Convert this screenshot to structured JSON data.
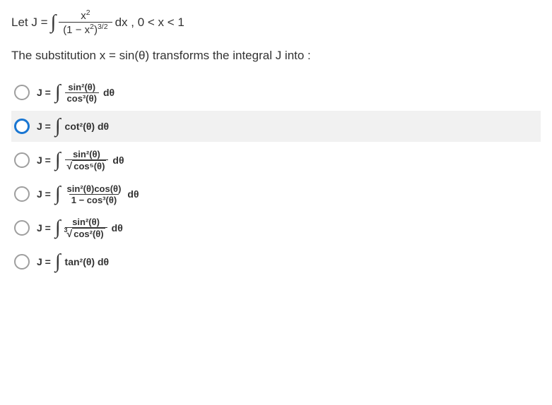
{
  "question": {
    "prefix": "Let J = ",
    "integral_sym": "∫",
    "numerator": "x",
    "num_exp": "2",
    "denominator_base": "(1 − x",
    "denom_inner_exp": "2",
    "denom_close": ")",
    "denom_outer_exp": "3/2",
    "suffix": " dx , 0 < x < 1"
  },
  "subtitle": "The substitution x = sin(θ) transforms the integral J into :",
  "options": [
    {
      "label": "J = ",
      "integral": "∫",
      "num": "sin²(θ)",
      "den": "cos³(θ)",
      "tail": " dθ",
      "root_idx": "",
      "highlighted": false,
      "selected": false
    },
    {
      "label": "J = ",
      "integral": "∫",
      "num": "",
      "den": "",
      "body": " cot²(θ) dθ",
      "highlighted": true,
      "selected": false,
      "simple": true
    },
    {
      "label": "J = ",
      "integral": "∫",
      "num": "sin²(θ)",
      "den_root": "cos⁵(θ)",
      "tail": " dθ",
      "root_idx": "",
      "highlighted": false,
      "selected": false,
      "root": true
    },
    {
      "label": "J = ",
      "integral": "∫",
      "num": "sin²(θ)cos(θ)",
      "den": "1 − cos³(θ)",
      "tail": " dθ",
      "highlighted": false,
      "selected": false
    },
    {
      "label": "J = ",
      "integral": "∫",
      "num": "sin²(θ)",
      "den_root": "cos²(θ)",
      "tail": " dθ",
      "root_idx": "3",
      "highlighted": false,
      "selected": false,
      "root": true
    },
    {
      "label": "J = ",
      "integral": "∫",
      "body": " tan²(θ) dθ",
      "highlighted": false,
      "selected": false,
      "simple": true
    }
  ],
  "colors": {
    "text": "#333333",
    "highlight_bg": "#f1f1f1",
    "radio_border": "#9e9e9e",
    "radio_active": "#1976d2",
    "bg": "#ffffff"
  }
}
